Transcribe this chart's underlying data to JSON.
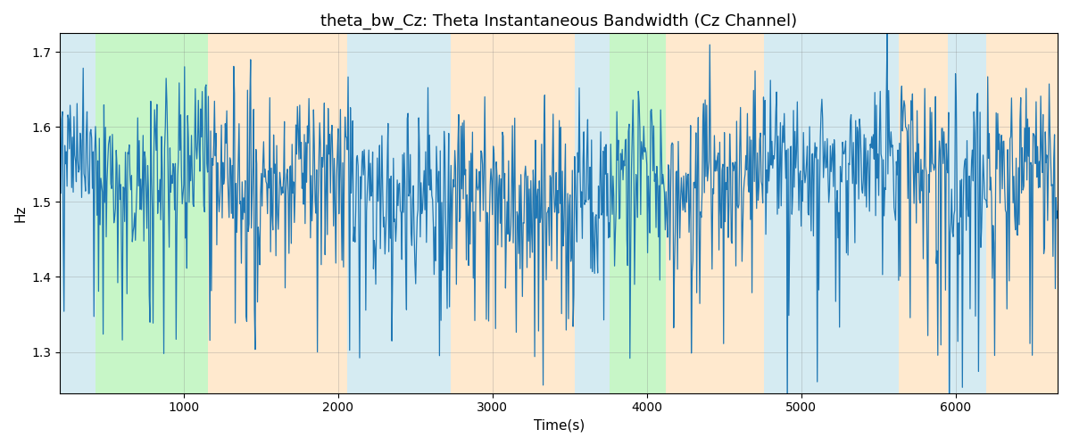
{
  "title": "theta_bw_Cz: Theta Instantaneous Bandwidth (Cz Channel)",
  "xlabel": "Time(s)",
  "ylabel": "Hz",
  "xlim": [
    200,
    6660
  ],
  "ylim": [
    1.245,
    1.725
  ],
  "yticks": [
    1.3,
    1.4,
    1.5,
    1.6,
    1.7
  ],
  "xticks": [
    1000,
    2000,
    3000,
    4000,
    5000,
    6000
  ],
  "line_color": "#1f77b4",
  "line_width": 0.9,
  "bg_regions": [
    [
      200,
      430,
      "#add8e6",
      0.5
    ],
    [
      430,
      1160,
      "#90ee90",
      0.5
    ],
    [
      1160,
      2060,
      "#ffd59f",
      0.5
    ],
    [
      2060,
      2450,
      "#add8e6",
      0.5
    ],
    [
      2450,
      2730,
      "#add8e6",
      0.5
    ],
    [
      2730,
      3530,
      "#ffd59f",
      0.5
    ],
    [
      3530,
      3720,
      "#add8e6",
      0.5
    ],
    [
      3720,
      3760,
      "#add8e6",
      0.5
    ],
    [
      3760,
      4120,
      "#90ee90",
      0.5
    ],
    [
      4120,
      4760,
      "#ffd59f",
      0.5
    ],
    [
      4760,
      5630,
      "#add8e6",
      0.5
    ],
    [
      5630,
      5950,
      "#ffd59f",
      0.5
    ],
    [
      5950,
      6200,
      "#add8e6",
      0.5
    ],
    [
      6200,
      6660,
      "#ffd59f",
      0.5
    ]
  ],
  "seed": 42,
  "n_points": 1300,
  "signal_mean": 1.535,
  "signal_std": 0.055,
  "title_fontsize": 13,
  "figsize": [
    12.0,
    5.0
  ],
  "dpi": 100
}
